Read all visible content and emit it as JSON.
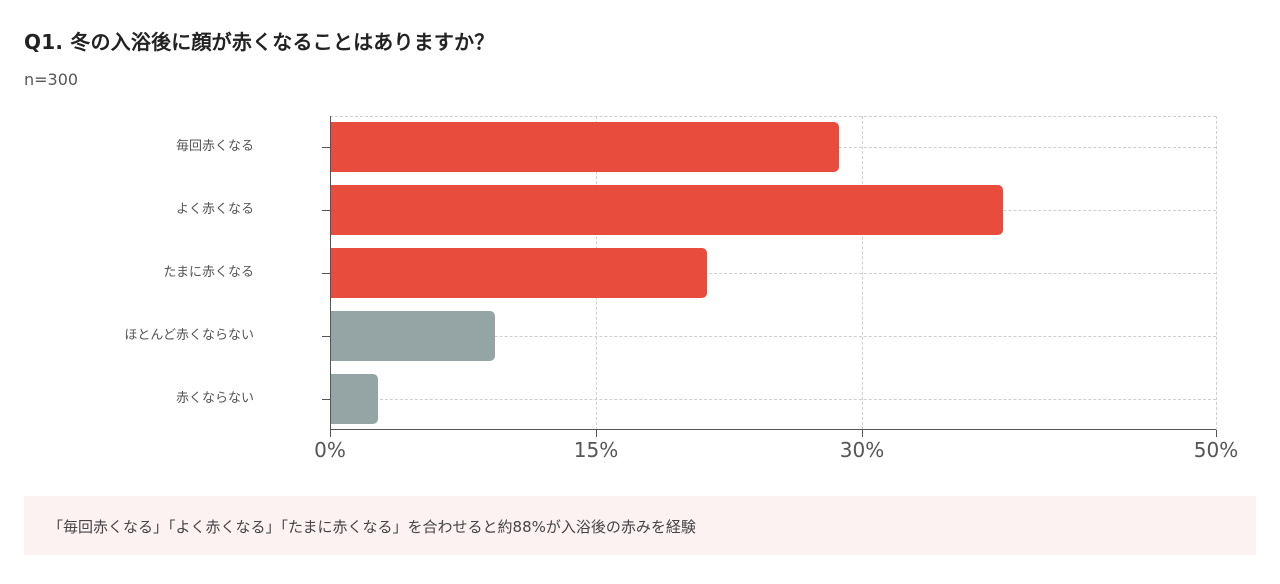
{
  "header": {
    "title": "Q1. 冬の入浴後に顔が赤くなることはありますか？",
    "sample": "n=300"
  },
  "colors": {
    "positive": "#e74c3c",
    "negative": "#95a5a6"
  },
  "chart_data": {
    "type": "bar",
    "orientation": "horizontal",
    "title": "Q1. 冬の入浴後に顔が赤くなることはありますか？",
    "subtitle": "n=300",
    "categories": [
      "毎回赤くなる",
      "よく赤くなる",
      "たまに赤くなる",
      "ほとんど赤くならない",
      "赤くならない"
    ],
    "values": [
      28.7,
      38.0,
      21.3,
      9.3,
      2.7
    ],
    "bar_colors": [
      "#e74c3c",
      "#e74c3c",
      "#e74c3c",
      "#95a5a6",
      "#95a5a6"
    ],
    "xlabel": "",
    "ylabel": "",
    "xlim": [
      0,
      50
    ],
    "x_ticks": [
      "0%",
      "15%",
      "30%",
      "50%"
    ],
    "x_tick_values": [
      0,
      15,
      30,
      50
    ],
    "grid": true,
    "unit": "%"
  },
  "callout": {
    "text": "「毎回赤くなる」「よく赤くなる」「たまに赤くなる」を合わせると約88%が入浴後の赤みを経験"
  }
}
